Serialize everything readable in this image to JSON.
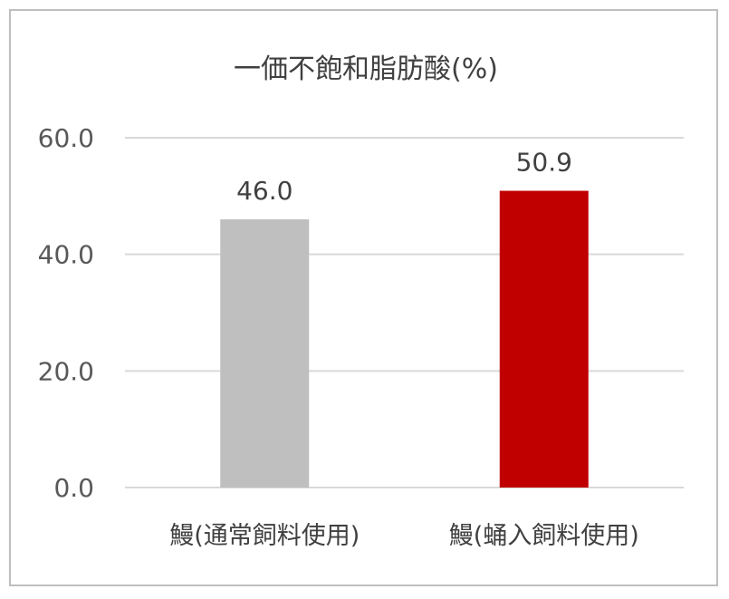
{
  "chart_data": {
    "type": "bar",
    "title": "一価不飽和脂肪酸(%)",
    "categories": [
      "鰻(通常飼料使用)",
      "鰻(蛹入飼料使用)"
    ],
    "values": [
      46.0,
      50.9
    ],
    "value_labels": [
      "46.0",
      "50.9"
    ],
    "bar_colors": [
      "#bfbfbf",
      "#c00000"
    ],
    "ylim": [
      0,
      60
    ],
    "yticks": [
      0,
      20,
      40,
      60
    ],
    "ytick_labels": [
      "0.0",
      "20.0",
      "40.0",
      "60.0"
    ],
    "grid": true,
    "legend": "none",
    "xlabel": "",
    "ylabel": ""
  }
}
